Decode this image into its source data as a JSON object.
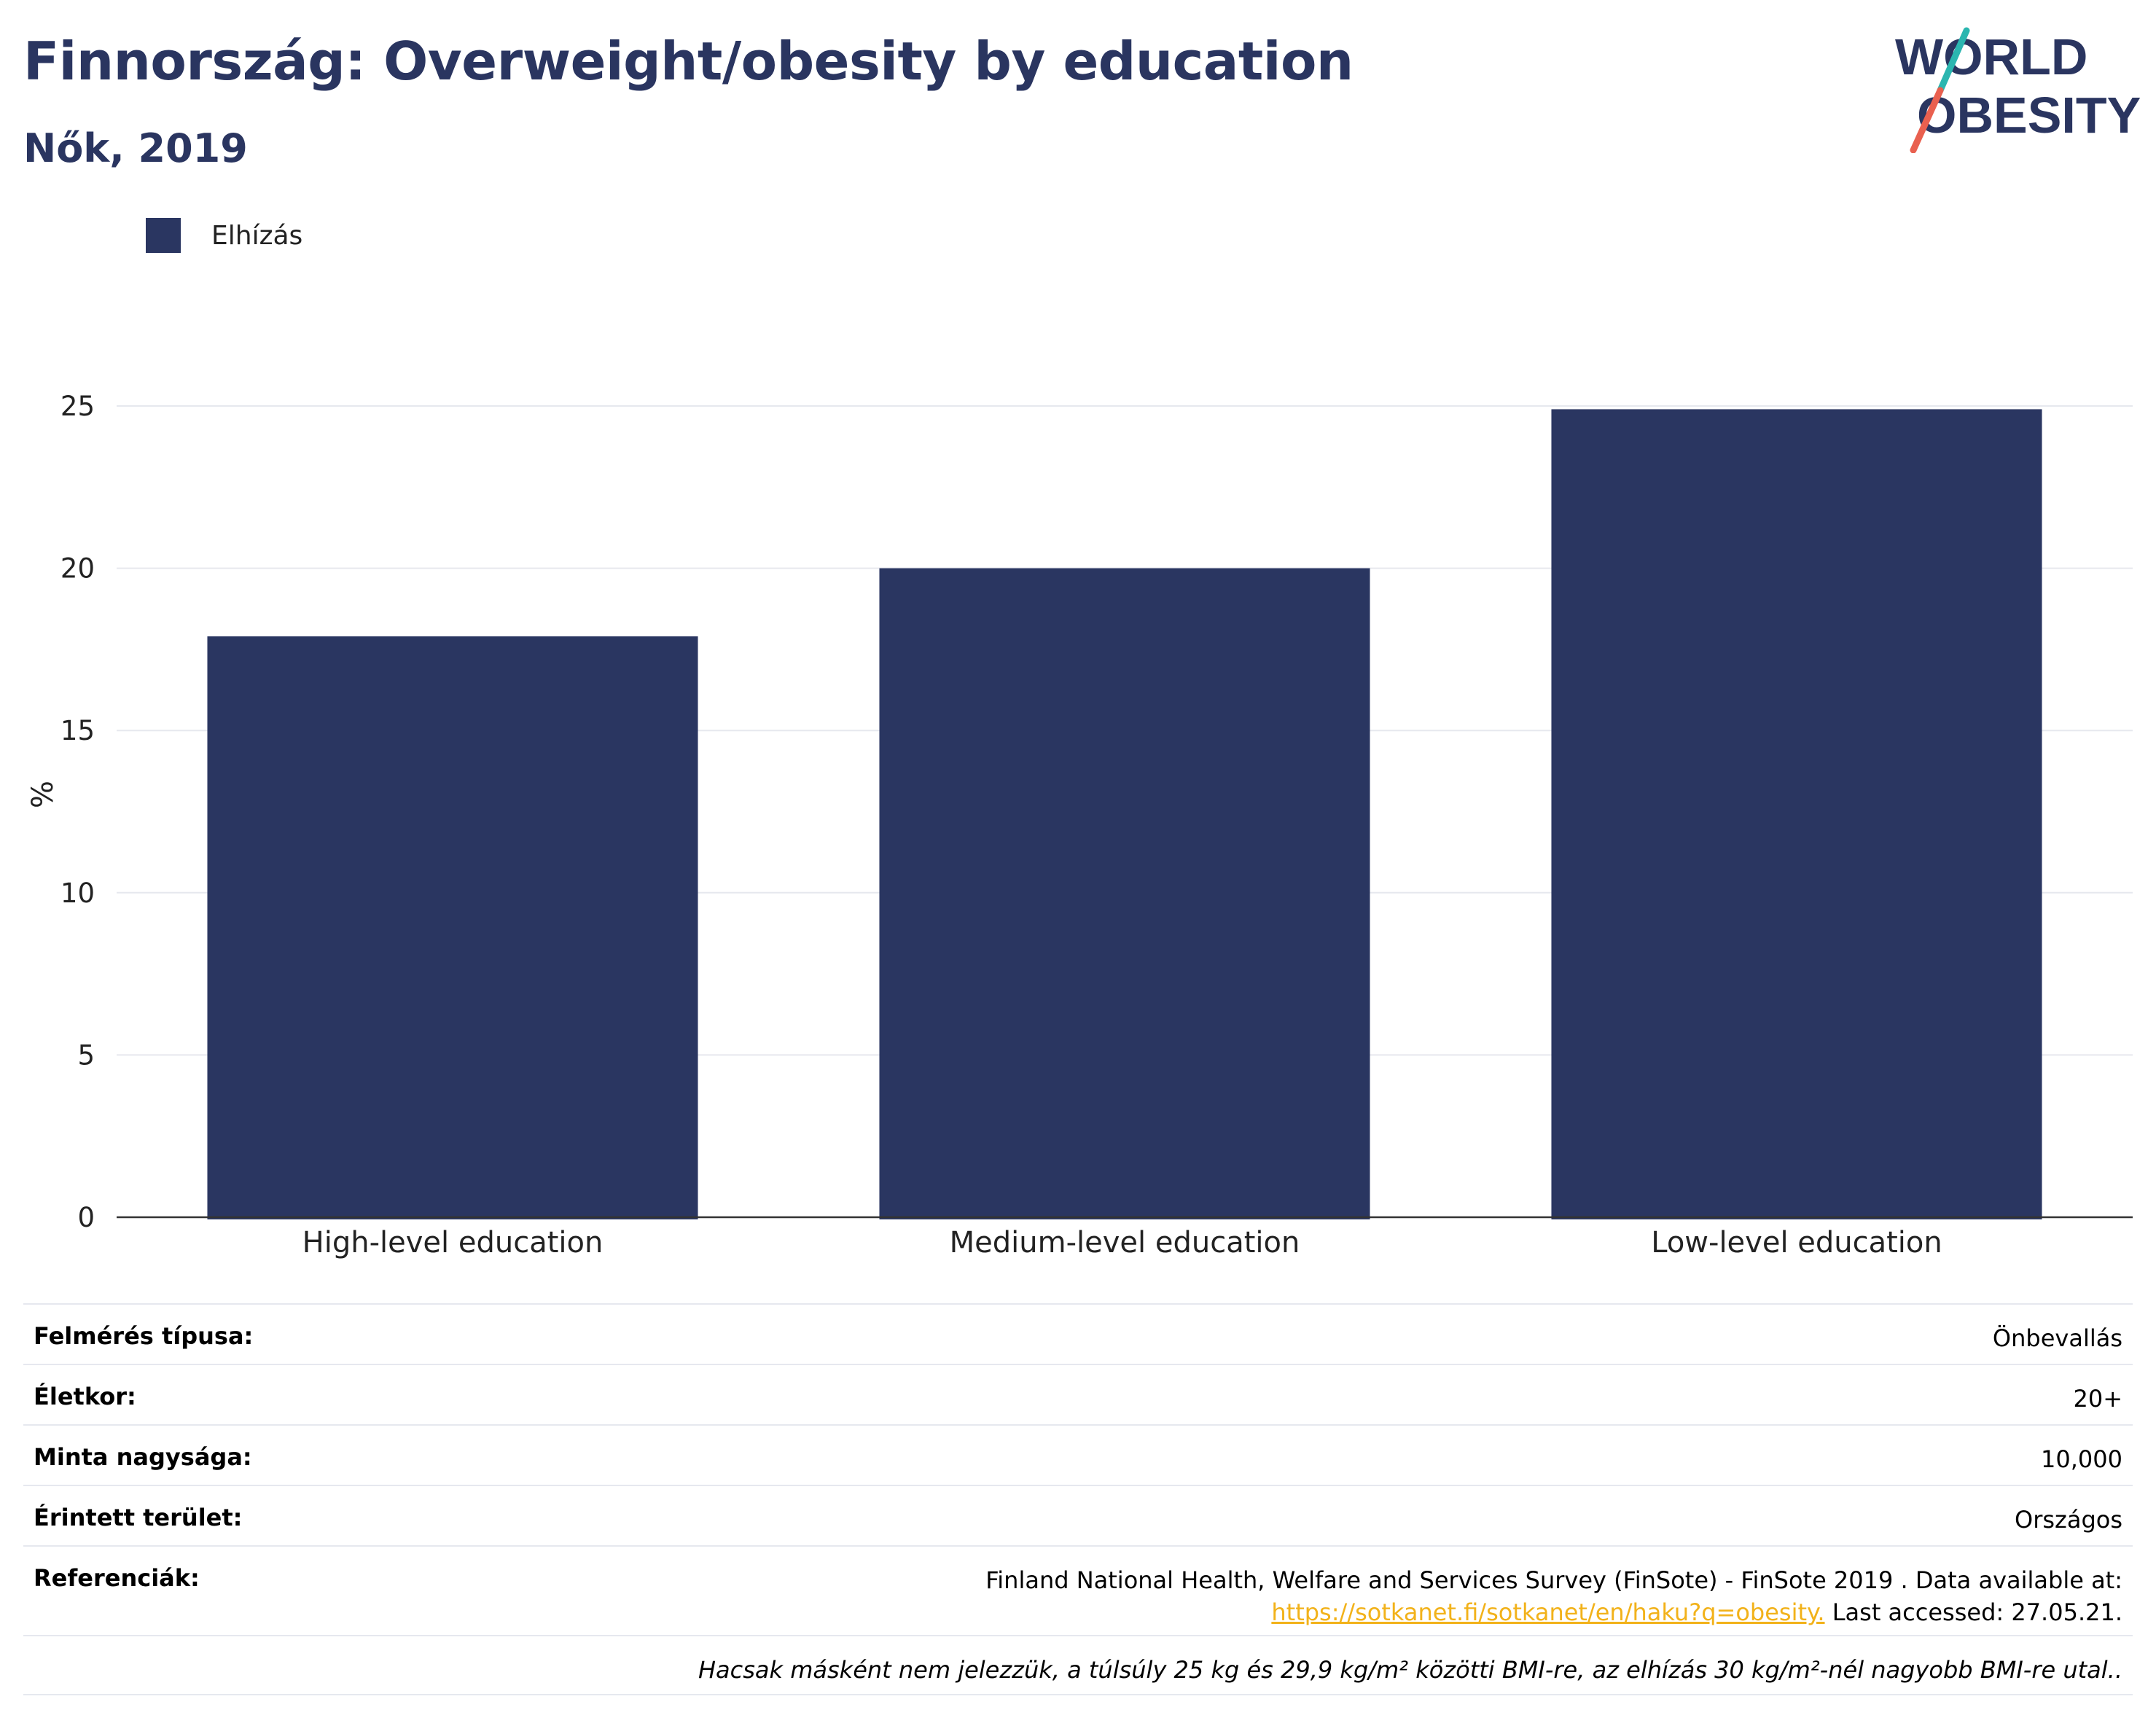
{
  "header": {
    "title": "Finnország: Overweight/obesity by education",
    "subtitle": "Nők, 2019"
  },
  "logo": {
    "line1": "WORLD",
    "line2": "OBESITY"
  },
  "legend": {
    "label": "Elhízás",
    "color": "#2a3661"
  },
  "chart_data": {
    "type": "bar",
    "categories": [
      "High-level education",
      "Medium-level education",
      "Low-level education"
    ],
    "series": [
      {
        "name": "Elhízás",
        "values": [
          17.9,
          20.0,
          24.9
        ],
        "color": "#2a3661"
      }
    ],
    "ylabel": "%",
    "xlabel": "",
    "ylim": [
      0,
      25
    ],
    "yticks": [
      0,
      5,
      10,
      15,
      20,
      25
    ],
    "grid": true,
    "legend_position": "top-left"
  },
  "info": {
    "survey_type": {
      "label": "Felmérés típusa:",
      "value": "Önbevallás"
    },
    "age": {
      "label": "Életkor:",
      "value": "20+"
    },
    "sample_size": {
      "label": "Minta nagysága:",
      "value": "10,000"
    },
    "area": {
      "label": "Érintett terület:",
      "value": "Országos"
    },
    "references": {
      "label": "Referenciák:",
      "text": "Finland National Health, Welfare and Services Survey (FinSote) - FinSote 2019 . Data available at:",
      "link": "https://sotkanet.fi/sotkanet/en/haku?q=obesity.",
      "accessed": " Last accessed: 27.05.21."
    },
    "footnote": "Hacsak másként nem jelezzük, a túlsúly 25 kg és 29,9 kg/m² közötti BMI-re, az elhízás 30 kg/m²-nél nagyobb BMI-re utal.."
  }
}
